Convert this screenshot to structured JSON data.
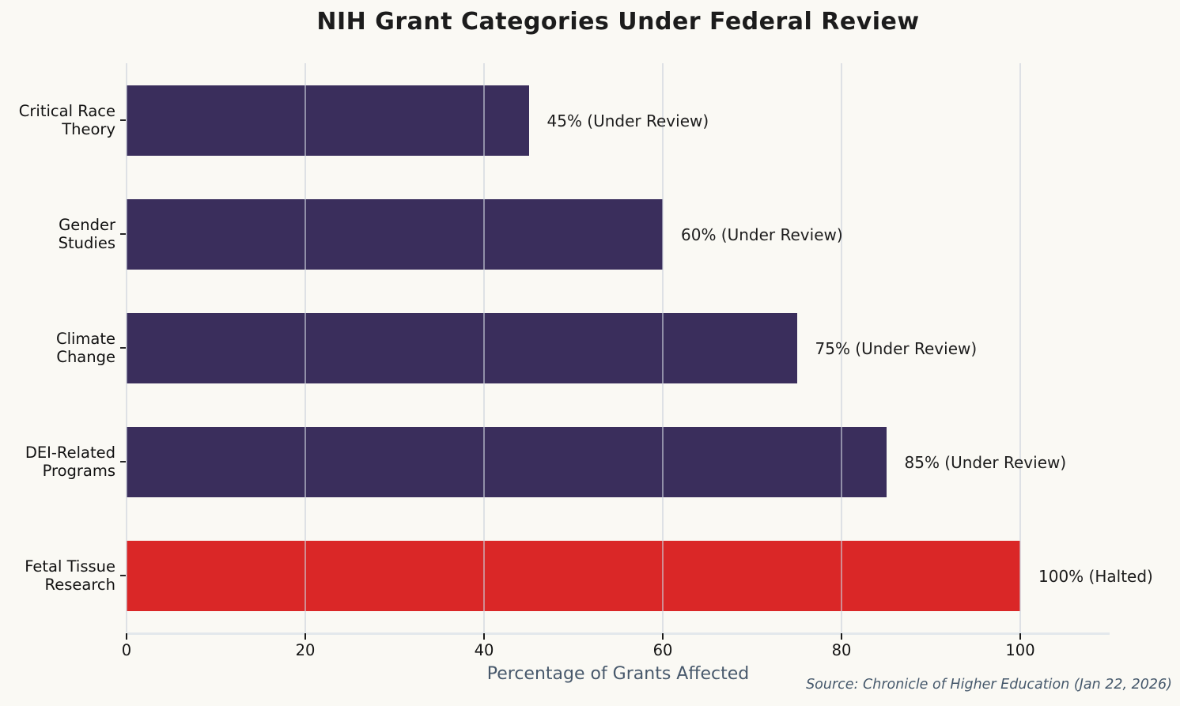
{
  "title": "NIH Grant Categories Under Federal Review",
  "chart_data": {
    "type": "bar",
    "orientation": "horizontal",
    "title": "NIH Grant Categories Under Federal Review",
    "categories": [
      "Critical Race\nTheory",
      "Gender\nStudies",
      "Climate\nChange",
      "DEI-Related\nPrograms",
      "Fetal Tissue\nResearch"
    ],
    "values": [
      45,
      60,
      75,
      85,
      100
    ],
    "bar_labels": [
      "45% (Under Review)",
      "60% (Under Review)",
      "75% (Under Review)",
      "85% (Under Review)",
      "100% (Halted)"
    ],
    "statuses": [
      "Under Review",
      "Under Review",
      "Under Review",
      "Under Review",
      "Halted"
    ],
    "bar_colors": [
      "#3a2e5c",
      "#3a2e5c",
      "#3a2e5c",
      "#3a2e5c",
      "#da2727"
    ],
    "xlabel": "Percentage of Grants Affected",
    "ylabel": "",
    "xlim": [
      0,
      110
    ],
    "xticks": [
      0,
      20,
      40,
      60,
      80,
      100
    ],
    "grid": "vertical",
    "legend": "none",
    "source": "Source: Chronicle of Higher Education (Jan 22, 2026)"
  },
  "colors": {
    "background": "#faf9f4",
    "bar_default": "#3a2e5c",
    "bar_halted": "#da2727",
    "gridline": "#cbd0da",
    "title_text": "#1c1c1c",
    "axis_label_text": "#47586b",
    "source_text": "#45586b",
    "tick_text": "#141414"
  }
}
